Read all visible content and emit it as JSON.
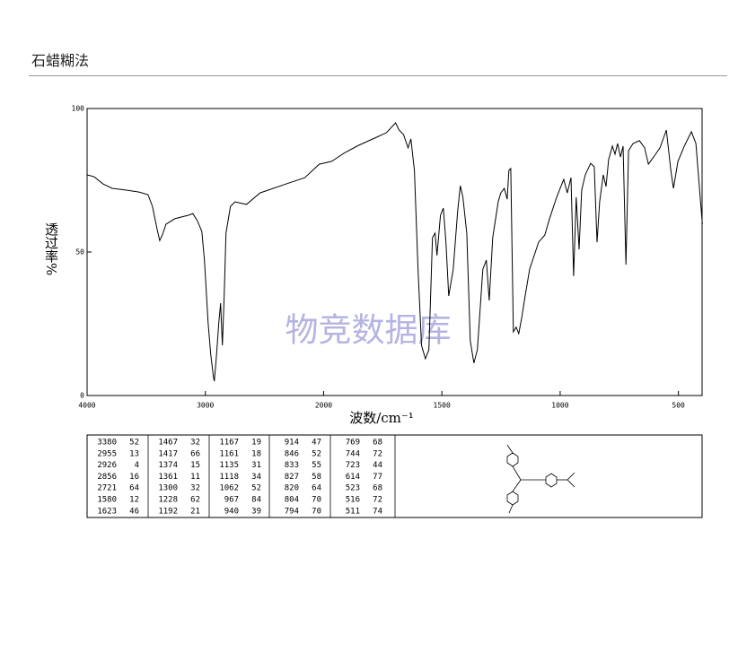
{
  "header": {
    "title": "石蜡糊法"
  },
  "chart_data": {
    "type": "line",
    "watermark": "物竞数据库",
    "xlabel": "波数/cm⁻¹",
    "ylabel": "透过率%",
    "xlim": [
      4000,
      400
    ],
    "ylim": [
      0,
      100
    ],
    "x_scale_change": 2000,
    "x_scale_factor": 2,
    "xticks": [
      4000,
      3000,
      2000,
      1500,
      1000,
      500
    ],
    "yticks": [
      0,
      50,
      100
    ],
    "color": "#000000",
    "x": [
      4000,
      3939,
      3864,
      3788,
      3674,
      3561,
      3485,
      3447,
      3409,
      3386,
      3364,
      3333,
      3258,
      3144,
      3106,
      3068,
      3030,
      3008,
      2977,
      2955,
      2932,
      2924,
      2909,
      2886,
      2871,
      2856,
      2841,
      2826,
      2788,
      2750,
      2652,
      2538,
      2311,
      2159,
      2038,
      1966,
      1909,
      1852,
      1776,
      1734,
      1696,
      1681,
      1662,
      1643,
      1631,
      1616,
      1601,
      1586,
      1570,
      1555,
      1540,
      1529,
      1521,
      1506,
      1494,
      1483,
      1471,
      1452,
      1433,
      1422,
      1411,
      1395,
      1380,
      1365,
      1350,
      1327,
      1312,
      1300,
      1285,
      1262,
      1251,
      1236,
      1224,
      1217,
      1209,
      1198,
      1186,
      1175,
      1163,
      1148,
      1129,
      1091,
      1065,
      1046,
      1015,
      985,
      970,
      954,
      943,
      932,
      920,
      909,
      894,
      871,
      856,
      844,
      833,
      818,
      806,
      795,
      779,
      768,
      757,
      745,
      734,
      722,
      711,
      692,
      665,
      643,
      627,
      605,
      578,
      551,
      532,
      521,
      502,
      475,
      445,
      426,
      399
    ],
    "values": [
      76.9,
      76.2,
      73.7,
      72.2,
      71.6,
      70.9,
      70,
      65.9,
      58.1,
      54,
      55.9,
      59.7,
      61.6,
      62.8,
      63.4,
      60.9,
      57.2,
      47.2,
      25.3,
      14.4,
      6.6,
      5,
      12.2,
      25.3,
      32.2,
      17.5,
      34.7,
      56.6,
      65.9,
      67.5,
      66.6,
      70.6,
      73.8,
      75.9,
      80.6,
      81.6,
      84.7,
      87.2,
      90,
      91.6,
      95,
      92.5,
      90.9,
      86.3,
      89.4,
      78.4,
      44,
      17.5,
      12.8,
      15.9,
      55,
      56.6,
      48.8,
      62.8,
      65.3,
      53.4,
      34.7,
      44,
      64.4,
      73.1,
      69.1,
      56.6,
      19.1,
      11.3,
      15.9,
      44,
      47.2,
      33.1,
      55,
      67.5,
      70.6,
      72.2,
      68.4,
      78.4,
      79.1,
      22.2,
      23.8,
      21.6,
      26.9,
      34.7,
      44,
      53.4,
      55.9,
      61.3,
      69.1,
      75.3,
      70.6,
      75.9,
      41.6,
      69.1,
      50.9,
      71.6,
      76.9,
      80.9,
      79.7,
      53.4,
      67.5,
      76.9,
      72.8,
      82.2,
      86.9,
      84.1,
      87.8,
      83.1,
      86.9,
      45.6,
      85.3,
      87.8,
      88.8,
      86.3,
      80.6,
      83.1,
      86.3,
      92.5,
      78.4,
      72.2,
      81.6,
      86.9,
      91.9,
      87.8,
      59.7
    ]
  },
  "peaks": [
    [
      [
        3380,
        52
      ],
      [
        2955,
        13
      ],
      [
        2926,
        4
      ],
      [
        2856,
        16
      ],
      [
        2721,
        64
      ],
      [
        1580,
        12
      ],
      [
        1623,
        46
      ]
    ],
    [
      [
        1467,
        32
      ],
      [
        1417,
        66
      ],
      [
        1374,
        15
      ],
      [
        1361,
        11
      ],
      [
        1300,
        32
      ],
      [
        1228,
        62
      ],
      [
        1192,
        21
      ]
    ],
    [
      [
        1167,
        19
      ],
      [
        1161,
        18
      ],
      [
        1135,
        31
      ],
      [
        1118,
        34
      ],
      [
        1062,
        52
      ],
      [
        967,
        84
      ],
      [
        940,
        39
      ]
    ],
    [
      [
        914,
        47
      ],
      [
        846,
        52
      ],
      [
        833,
        55
      ],
      [
        827,
        58
      ],
      [
        820,
        64
      ],
      [
        804,
        70
      ],
      [
        794,
        70
      ]
    ],
    [
      [
        769,
        68
      ],
      [
        744,
        72
      ],
      [
        723,
        44
      ],
      [
        614,
        77
      ],
      [
        523,
        68
      ],
      [
        516,
        72
      ],
      [
        511,
        74
      ]
    ]
  ]
}
